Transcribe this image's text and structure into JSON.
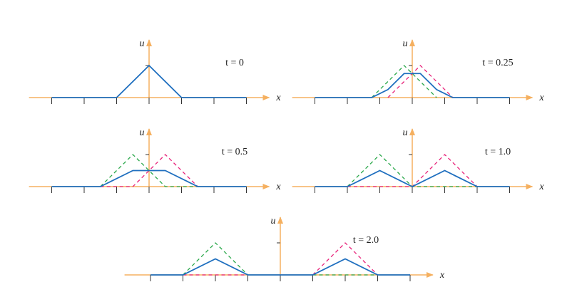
{
  "chart_data": [
    {
      "type": "line",
      "title": "t = 0",
      "xlabel": "x",
      "ylabel": "u",
      "xlim": [
        -3.7,
        3.7
      ],
      "ylim": [
        0,
        1.8
      ],
      "xticks": [
        -3,
        -2,
        -1,
        0,
        1,
        2,
        3
      ],
      "yticks": [
        1
      ],
      "series": [
        {
          "color": "#1f6fbf",
          "dashed": false,
          "x": [
            -3,
            -1,
            0,
            1,
            3
          ],
          "values": [
            0,
            0,
            1,
            0,
            0
          ]
        }
      ]
    },
    {
      "type": "line",
      "title": "t = 0.25",
      "xlabel": "x",
      "ylabel": "u",
      "xlim": [
        -3.7,
        3.7
      ],
      "ylim": [
        0,
        1.8
      ],
      "xticks": [
        -3,
        -2,
        -1,
        0,
        1,
        2,
        3
      ],
      "yticks": [
        1
      ],
      "series": [
        {
          "color": "#2aa84a",
          "dashed": true,
          "x": [
            -1.25,
            -0.25,
            0.75
          ],
          "values": [
            0,
            1,
            0
          ]
        },
        {
          "color": "#e8237a",
          "dashed": true,
          "x": [
            -0.75,
            0.25,
            1.25
          ],
          "values": [
            0,
            1,
            0
          ]
        },
        {
          "color": "#1f6fbf",
          "dashed": false,
          "x": [
            -3,
            -1.25,
            -0.75,
            -0.25,
            0.25,
            0.75,
            1.25,
            3
          ],
          "values": [
            0,
            0,
            0.25,
            0.75,
            0.75,
            0.25,
            0,
            0
          ]
        }
      ]
    },
    {
      "type": "line",
      "title": "t = 0.5",
      "xlabel": "x",
      "ylabel": "u",
      "xlim": [
        -3.7,
        3.7
      ],
      "ylim": [
        0,
        1.8
      ],
      "xticks": [
        -3,
        -2,
        -1,
        0,
        1,
        2,
        3
      ],
      "yticks": [
        1
      ],
      "series": [
        {
          "color": "#2aa84a",
          "dashed": true,
          "x": [
            -1.5,
            -0.5,
            0.5,
            1.5
          ],
          "values": [
            0,
            1,
            0,
            0
          ]
        },
        {
          "color": "#e8237a",
          "dashed": true,
          "x": [
            -1.5,
            -0.5,
            0.5,
            1.5
          ],
          "values": [
            0,
            0,
            1,
            0
          ]
        },
        {
          "color": "#1f6fbf",
          "dashed": false,
          "x": [
            -3,
            -1.5,
            -0.5,
            0.5,
            1.5,
            3
          ],
          "values": [
            0,
            0,
            0.5,
            0.5,
            0,
            0
          ]
        }
      ]
    },
    {
      "type": "line",
      "title": "t = 1.0",
      "xlabel": "x",
      "ylabel": "u",
      "xlim": [
        -3.7,
        3.7
      ],
      "ylim": [
        0,
        1.8
      ],
      "xticks": [
        -3,
        -2,
        -1,
        0,
        1,
        2,
        3
      ],
      "yticks": [
        1
      ],
      "series": [
        {
          "color": "#2aa84a",
          "dashed": true,
          "x": [
            -2,
            -1,
            0,
            2
          ],
          "values": [
            0,
            1,
            0,
            0
          ]
        },
        {
          "color": "#e8237a",
          "dashed": true,
          "x": [
            -2,
            0,
            1,
            2
          ],
          "values": [
            0,
            0,
            1,
            0
          ]
        },
        {
          "color": "#1f6fbf",
          "dashed": false,
          "x": [
            -3,
            -2,
            -1,
            0,
            1,
            2,
            3
          ],
          "values": [
            0,
            0,
            0.5,
            0,
            0.5,
            0,
            0
          ]
        }
      ]
    },
    {
      "type": "line",
      "title": "t = 2.0",
      "xlabel": "x",
      "ylabel": "u",
      "xlim": [
        -4.8,
        4.7
      ],
      "ylim": [
        0,
        1.8
      ],
      "xticks": [
        -4,
        -3,
        -2,
        -1,
        0,
        1,
        2,
        3,
        4
      ],
      "yticks": [
        1
      ],
      "series": [
        {
          "color": "#2aa84a",
          "dashed": true,
          "x": [
            -3,
            -2,
            -1,
            null,
            1,
            3
          ],
          "values": [
            0,
            1,
            0,
            null,
            0,
            0
          ]
        },
        {
          "color": "#e8237a",
          "dashed": true,
          "x": [
            -3,
            -1,
            null,
            1,
            2,
            3
          ],
          "values": [
            0,
            0,
            null,
            0,
            1,
            0
          ]
        },
        {
          "color": "#1f6fbf",
          "dashed": false,
          "x": [
            -4,
            -3,
            -2,
            -1,
            1,
            2,
            3,
            4
          ],
          "values": [
            0,
            0,
            0.5,
            0,
            0,
            0.5,
            0,
            0
          ]
        }
      ]
    }
  ]
}
